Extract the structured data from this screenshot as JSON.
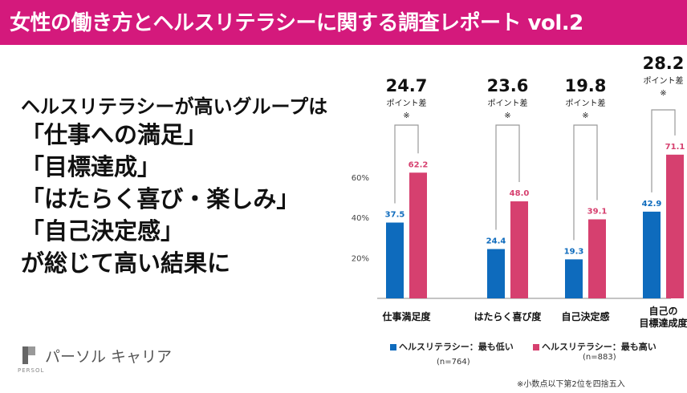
{
  "header": {
    "title": "女性の働き方とヘルスリテラシーに関する調査レポート vol.2"
  },
  "headline": {
    "lines": [
      "ヘルスリテラシーが高いグループは",
      "「仕事への満足」",
      "「目標達成」",
      "「はたらく喜び・楽しみ」",
      "「自己決定感」",
      "が総じて高い結果に"
    ]
  },
  "logo": {
    "name": "パーソル キャリア",
    "sub": "PERSOL"
  },
  "colors": {
    "header": "#d4197c",
    "low": "#0e6bbd",
    "high": "#d6406f"
  },
  "chart_data": {
    "type": "bar",
    "categories": [
      "仕事満足度",
      "はたらく喜び度",
      "自己決定感",
      "自己の\n目標達成度"
    ],
    "series": [
      {
        "name": "ヘルスリテラシー：最も低い",
        "n": "(n=764)",
        "values": [
          37.5,
          24.4,
          19.3,
          42.9
        ]
      },
      {
        "name": "ヘルスリテラシー：最も高い",
        "n": "(n=883)",
        "values": [
          62.2,
          48.0,
          39.1,
          71.1
        ]
      }
    ],
    "differences": [
      "24.7",
      "23.6",
      "19.8",
      "28.2"
    ],
    "difference_label": "ポイント差",
    "difference_mark": "※",
    "yticks": [
      20,
      40,
      60
    ],
    "ytick_suffix": "%",
    "ylim": [
      0,
      80
    ]
  },
  "footnote": "※小数点以下第2位を四捨五入"
}
